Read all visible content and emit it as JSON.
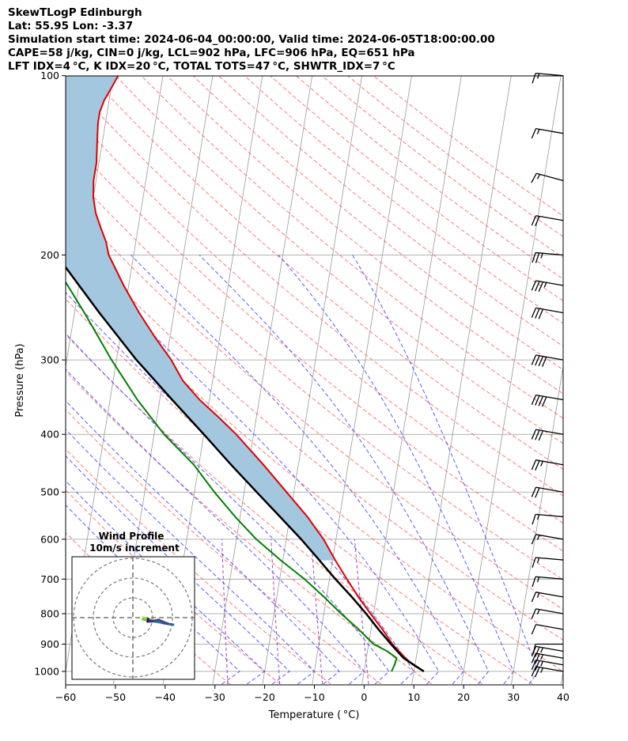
{
  "header": {
    "line1": "SkewTLogP Edinburgh",
    "line2": "Lat: 55.95   Lon: -3.37",
    "line3": "Simulation start time: 2024-06-04_00:00:00, Valid time: 2024-06-05T18:00:00.00",
    "line4": "CAPE=58 j/kg, CIN=0 j/kg, LCL=902 hPa, LFC=906 hPa, EQ=651 hPa",
    "line5": "LFT IDX=4 °C, K IDX=20 °C, TOTAL TOTS=47 °C, SHWTR_IDX=7 °C"
  },
  "chart_data": {
    "type": "line",
    "xlabel": "Temperature ( °C)",
    "ylabel": "Pressure (hPa)",
    "xlim": [
      -60,
      40
    ],
    "ylim": [
      1050,
      100
    ],
    "y_scale": "log",
    "skew": true,
    "grid": true,
    "x_ticks": [
      -60,
      -50,
      -40,
      -30,
      -20,
      -10,
      0,
      10,
      20,
      30,
      40
    ],
    "x_tick_labels": [
      "−60",
      "−50",
      "−40",
      "−30",
      "−20",
      "−10",
      "0",
      "10",
      "20",
      "30",
      "40"
    ],
    "y_ticks": [
      1000,
      900,
      800,
      700,
      600,
      500,
      400,
      300,
      200,
      100
    ],
    "y_tick_labels": [
      "1000",
      "900",
      "800",
      "700",
      "600",
      "500",
      "400",
      "300",
      "200",
      "100"
    ],
    "colors": {
      "temperature": "#e00000",
      "dewpoint": "#008000",
      "parcel": "#000000",
      "cape_fill": "#a4c7e0",
      "dry_adiabats": "#ff6060",
      "moist_adiabats": "#4040ff",
      "mixing_ratio": "#a040c0",
      "isotherms": "#999999"
    },
    "series": [
      {
        "key": "temperature",
        "pressure": [
          1000,
          975,
          950,
          925,
          900,
          850,
          800,
          750,
          700,
          650,
          600,
          550,
          500,
          450,
          400,
          375,
          350,
          325,
          300,
          275,
          250,
          225,
          200,
          190,
          180,
          170,
          160,
          150,
          140,
          130,
          120,
          115,
          110,
          105,
          100
        ],
        "values": [
          12,
          9.6,
          7.9,
          6.3,
          4.8,
          2.3,
          -0.6,
          -3.6,
          -6.5,
          -9.5,
          -12.5,
          -16.5,
          -21.5,
          -27,
          -33.5,
          -37.5,
          -42,
          -46,
          -49,
          -53,
          -57,
          -61,
          -65,
          -66,
          -67.5,
          -69,
          -70,
          -70.5,
          -70.5,
          -71,
          -71.5,
          -71.5,
          -71,
          -70,
          -69
        ]
      },
      {
        "key": "dewpoint",
        "pressure": [
          1000,
          975,
          950,
          925,
          900,
          850,
          800,
          750,
          700,
          650,
          600,
          550,
          500,
          450,
          400,
          350,
          300,
          250,
          200,
          180,
          160,
          140,
          120,
          100
        ],
        "values": [
          5.5,
          5.9,
          6.1,
          4.0,
          1.0,
          -2.5,
          -6.5,
          -10.5,
          -15,
          -20.5,
          -26,
          -31,
          -36,
          -41,
          -48,
          -54.5,
          -61,
          -68,
          -77,
          -80,
          -81,
          -82,
          -83,
          -84
        ]
      },
      {
        "key": "parcel",
        "pressure": [
          1000,
          950,
          900,
          850,
          800,
          750,
          700,
          650,
          600,
          550,
          500,
          450,
          400,
          350,
          300,
          250,
          200,
          150,
          100
        ],
        "values": [
          12,
          7.5,
          4.5,
          1.5,
          -1.5,
          -4.9,
          -8.8,
          -12.7,
          -17,
          -22,
          -27.5,
          -33.5,
          -40,
          -47.5,
          -56,
          -65,
          -75.5,
          -87.5,
          -101
        ]
      }
    ],
    "cape_fill": "between temperature and parcel, 100–651 hPa",
    "wind_barbs": {
      "pressure": [
        1000,
        975,
        950,
        925,
        900,
        850,
        800,
        750,
        700,
        650,
        600,
        550,
        500,
        450,
        400,
        350,
        300,
        250,
        225,
        200,
        175,
        150,
        125,
        100
      ],
      "speed_kt": [
        25,
        25,
        25,
        25,
        10,
        10,
        15,
        15,
        15,
        15,
        15,
        15,
        20,
        25,
        30,
        40,
        40,
        30,
        35,
        25,
        20,
        15,
        15,
        15
      ],
      "direction_deg": [
        280,
        280,
        280,
        280,
        270,
        280,
        280,
        280,
        275,
        275,
        280,
        275,
        280,
        280,
        280,
        280,
        280,
        280,
        280,
        275,
        280,
        285,
        280,
        275
      ]
    },
    "inset": {
      "title": "Wind Profile",
      "subtitle": "10m/s increment",
      "type": "hodograph",
      "ring_step_ms": 10
    }
  }
}
